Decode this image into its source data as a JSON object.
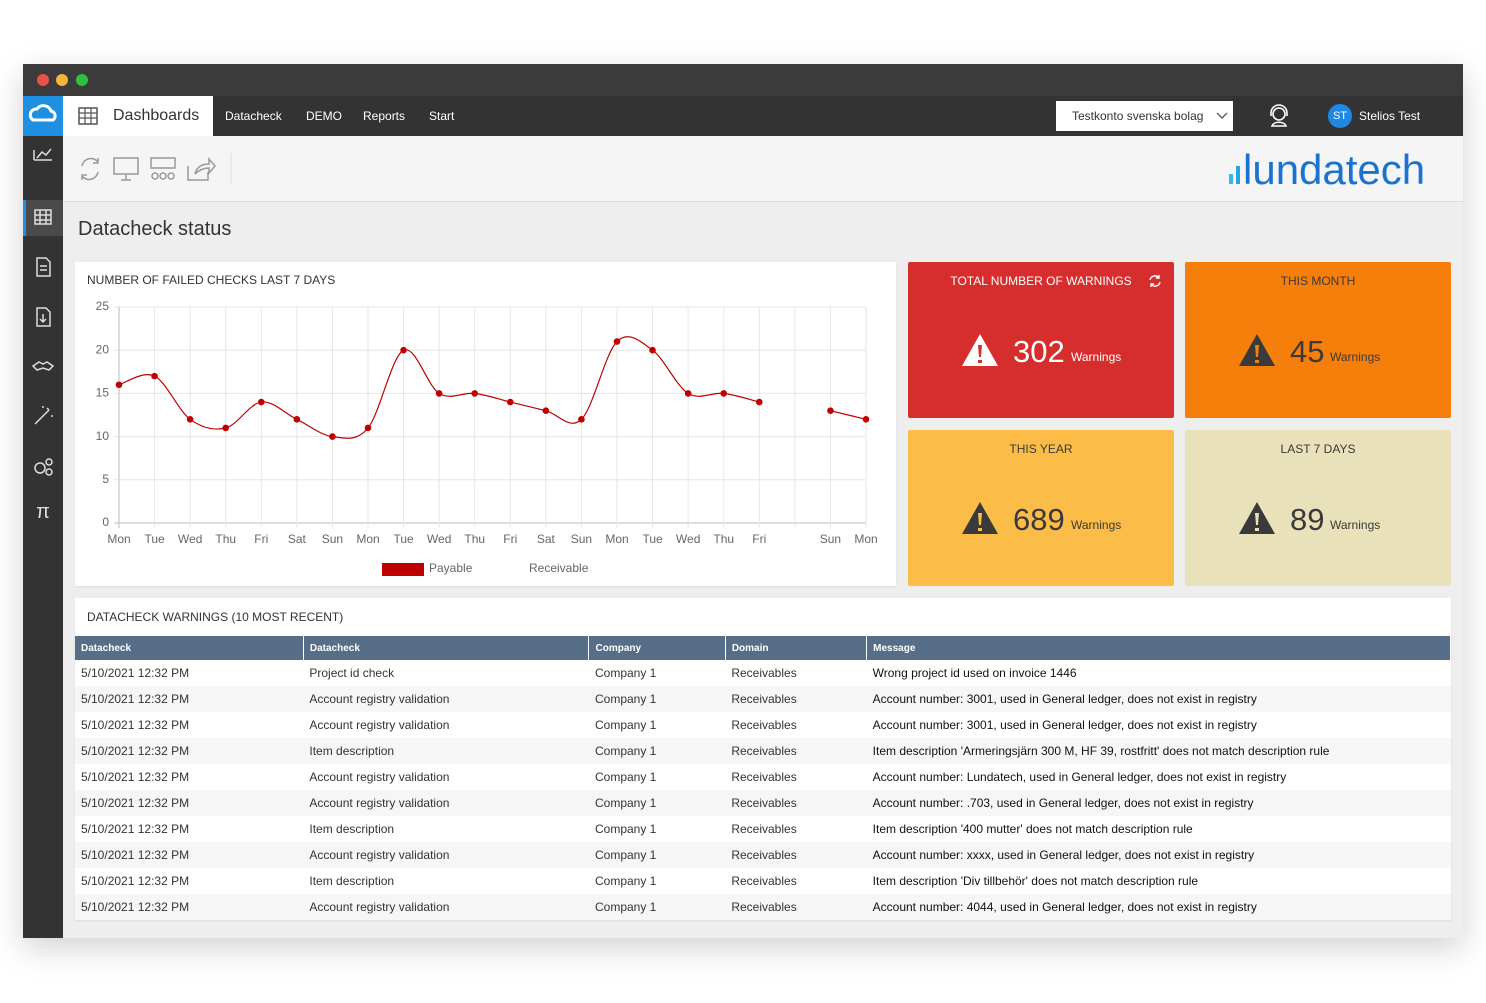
{
  "nav": {
    "brand": "Dashboards",
    "items": [
      "Datacheck",
      "DEMO",
      "Reports",
      "Start"
    ],
    "account": "Testkonto svenska bolag",
    "user_initials": "ST",
    "user_name": "Stelios Test"
  },
  "logo": "lundatech",
  "page_title": "Datacheck status",
  "chart_data": {
    "type": "line",
    "title": "NUMBER OF FAILED CHECKS LAST 7 DAYS",
    "categories": [
      "Mon",
      "Tue",
      "Wed",
      "Thu",
      "Fri",
      "Sat",
      "Sun",
      "Mon",
      "Tue",
      "Wed",
      "Thu",
      "Fri",
      "Sat",
      "Sun",
      "Mon",
      "Tue",
      "Wed",
      "Thu",
      "Fri",
      null,
      "Sun",
      "Mon"
    ],
    "series": [
      {
        "name": "Payable",
        "color": "#c00000",
        "values": [
          16,
          17,
          12,
          11,
          14,
          12,
          10,
          11,
          20,
          15,
          15,
          14,
          13,
          12,
          21,
          20,
          15,
          15,
          14,
          null,
          13,
          12
        ]
      },
      {
        "name": "Receivable",
        "values": [
          null,
          null,
          null,
          null,
          null,
          null,
          null,
          null,
          null,
          null,
          null,
          null,
          null,
          null,
          null,
          null,
          null,
          null,
          null,
          null,
          null,
          null
        ]
      }
    ],
    "ylim": [
      0,
      25
    ],
    "yticks": [
      0,
      5,
      10,
      15,
      20,
      25
    ],
    "grid": true,
    "smooth": true,
    "legend": "bottom"
  },
  "tiles": [
    {
      "title": "TOTAL NUMBER OF WARNINGS",
      "value": 302,
      "unit": "Warnings",
      "color": "#d62d2d"
    },
    {
      "title": "THIS MONTH",
      "value": 45,
      "unit": "Warnings",
      "color": "#f57f0a"
    },
    {
      "title": "THIS YEAR",
      "value": 689,
      "unit": "Warnings",
      "color": "#fbbd47"
    },
    {
      "title": "LAST 7 DAYS",
      "value": 89,
      "unit": "Warnings",
      "color": "#e9e1b9"
    }
  ],
  "table": {
    "title": "DATACHECK WARNINGS (10 MOST RECENT)",
    "columns": [
      "Datacheck",
      "Datacheck",
      "Company",
      "Domain",
      "Message"
    ],
    "rows": [
      [
        "5/10/2021 12:32 PM",
        "Project id check",
        "Company 1",
        "Receivables",
        "Wrong project id used on invoice 1446"
      ],
      [
        "5/10/2021 12:32 PM",
        "Account registry validation",
        "Company 1",
        "Receivables",
        "Account number: 3001, used in General ledger, does not exist in registry"
      ],
      [
        "5/10/2021 12:32 PM",
        "Account registry validation",
        "Company 1",
        "Receivables",
        "Account number: 3001, used in General ledger, does not exist in registry"
      ],
      [
        "5/10/2021 12:32 PM",
        "Item description",
        "Company 1",
        "Receivables",
        "Item description 'Armeringsjärn 300 M, HF 39, rostfritt' does not match description rule"
      ],
      [
        "5/10/2021 12:32 PM",
        "Account registry validation",
        "Company 1",
        "Receivables",
        "Account number: Lundatech, used in General ledger, does not exist in registry"
      ],
      [
        "5/10/2021 12:32 PM",
        "Account registry validation",
        "Company 1",
        "Receivables",
        "Account number: .703, used in General ledger, does not exist in registry"
      ],
      [
        "5/10/2021 12:32 PM",
        "Item description",
        "Company 1",
        "Receivables",
        "Item description '400 mutter' does not match description rule"
      ],
      [
        "5/10/2021 12:32 PM",
        "Account registry validation",
        "Company 1",
        "Receivables",
        "Account number: xxxx, used in General ledger, does not exist in registry"
      ],
      [
        "5/10/2021 12:32 PM",
        "Item description",
        "Company 1",
        "Receivables",
        "Item description 'Div tillbehör' does not match description rule"
      ],
      [
        "5/10/2021 12:32 PM",
        "Account registry validation",
        "Company 1",
        "Receivables",
        "Account number: 4044, used in General ledger, does not exist in registry"
      ]
    ]
  }
}
